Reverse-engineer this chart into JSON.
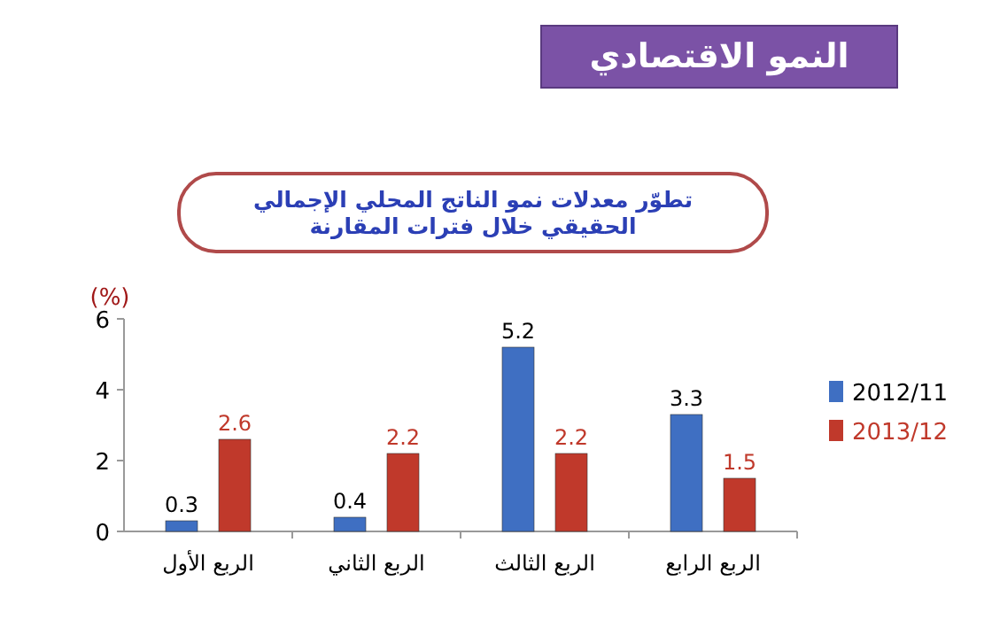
{
  "chart_data": {
    "type": "bar",
    "title": "النمو الاقتصادي",
    "subtitle": "تطوّر معدلات نمو الناتج المحلي الإجمالي الحقيقي خلال فترات المقارنة",
    "ylabel": "(%)",
    "categories": [
      "الربع الأول",
      "الربع الثاني",
      "الربع الثالث",
      "الربع الرابع"
    ],
    "series": [
      {
        "name": "2012/11",
        "color": "#3f6fc2",
        "values": [
          0.3,
          0.4,
          5.2,
          3.3
        ]
      },
      {
        "name": "2013/12",
        "color": "#c0392b",
        "values": [
          2.6,
          2.2,
          2.2,
          1.5
        ]
      }
    ],
    "ylim": [
      0,
      6
    ],
    "yticks": [
      0,
      2,
      4,
      6
    ],
    "grid": false,
    "legend": "right",
    "data_labels": true
  }
}
